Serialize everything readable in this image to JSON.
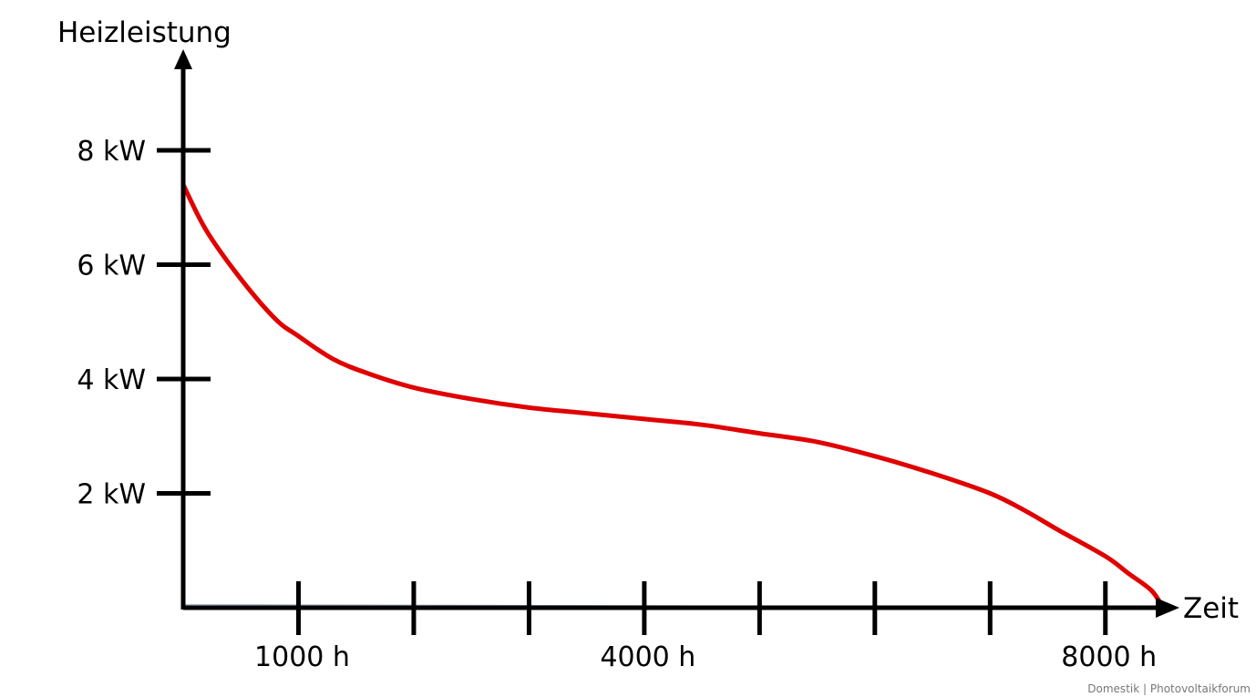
{
  "chart_data": {
    "type": "line",
    "title": "",
    "ylabel": "Heizleistung",
    "xlabel": "Zeit",
    "y_unit": "kW",
    "x_unit": "h",
    "xlim": [
      0,
      8500
    ],
    "ylim": [
      0,
      8
    ],
    "y_ticks": [
      2,
      4,
      6,
      8
    ],
    "y_tick_labels": [
      "2 kW",
      "4 kW",
      "6 kW",
      "8 kW"
    ],
    "x_ticks": [
      1000,
      2000,
      3000,
      4000,
      5000,
      6000,
      7000,
      8000
    ],
    "x_tick_labels": [
      {
        "value": 1000,
        "label": "1000 h"
      },
      {
        "value": 4000,
        "label": "4000 h"
      },
      {
        "value": 8000,
        "label": "8000 h"
      }
    ],
    "grid": false,
    "legend": "none",
    "series": [
      {
        "color": "#e00000",
        "x": [
          0,
          200,
          500,
          800,
          1000,
          1300,
          1600,
          2000,
          2500,
          3000,
          3500,
          4000,
          4500,
          5000,
          5500,
          6000,
          6500,
          7000,
          7300,
          7600,
          8000,
          8200,
          8400,
          8500
        ],
        "y": [
          7.4,
          6.6,
          5.75,
          5.05,
          4.75,
          4.35,
          4.1,
          3.85,
          3.65,
          3.5,
          3.4,
          3.3,
          3.2,
          3.05,
          2.9,
          2.65,
          2.35,
          2.0,
          1.7,
          1.35,
          0.9,
          0.6,
          0.3,
          0.0
        ]
      },
      {
        "color": "#a8bfd0",
        "x": [
          0,
          8500
        ],
        "y": [
          0.05,
          0.0
        ]
      }
    ]
  },
  "credit": "Domestik | Photovoltaikforum"
}
